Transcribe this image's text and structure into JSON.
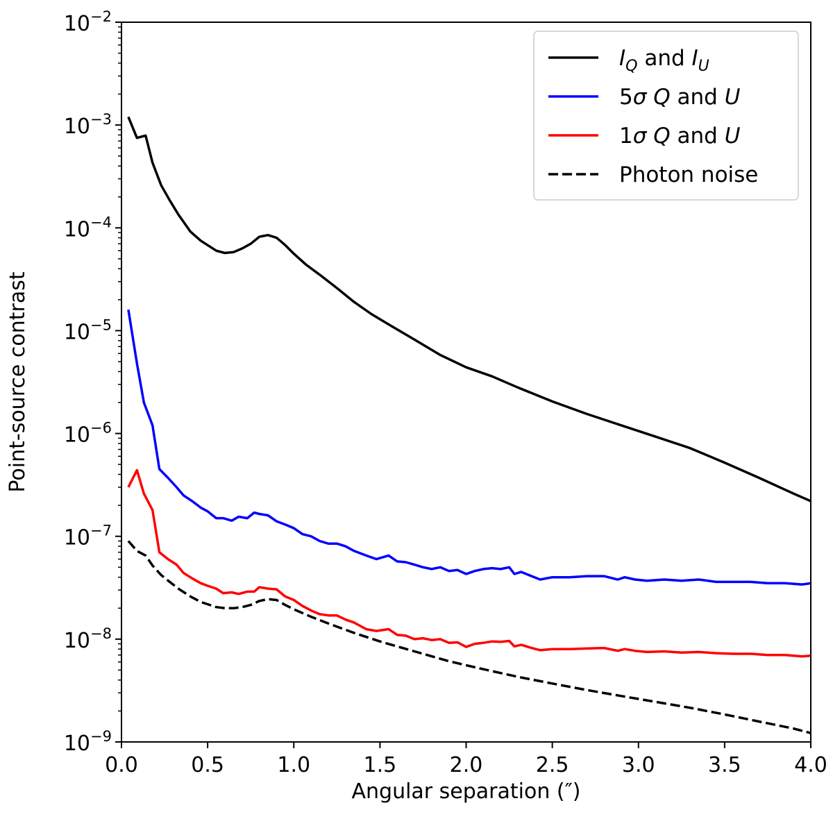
{
  "chart_data": {
    "type": "line",
    "xlabel": "Angular separation (″)",
    "ylabel": "Point-source contrast",
    "xlim": [
      0.0,
      4.0
    ],
    "ylim": [
      1e-09,
      0.01
    ],
    "yscale": "log",
    "grid": false,
    "legend_position": "top-right",
    "x_ticks": [
      "0.0",
      "0.5",
      "1.0",
      "1.5",
      "2.0",
      "2.5",
      "3.0",
      "3.5",
      "4.0"
    ],
    "y_ticks": [
      {
        "base": "10",
        "exp": "−9"
      },
      {
        "base": "10",
        "exp": "−8"
      },
      {
        "base": "10",
        "exp": "−7"
      },
      {
        "base": "10",
        "exp": "−6"
      },
      {
        "base": "10",
        "exp": "−5"
      },
      {
        "base": "10",
        "exp": "−4"
      },
      {
        "base": "10",
        "exp": "−3"
      },
      {
        "base": "10",
        "exp": "−2"
      }
    ],
    "series": [
      {
        "legend": {
          "parts": [
            [
              "I",
              "italic"
            ],
            [
              "Q",
              "sub-italic"
            ],
            [
              " and ",
              "normal"
            ],
            [
              "I",
              "italic"
            ],
            [
              "U",
              "sub-italic"
            ]
          ]
        },
        "color": "#000000",
        "dash": "solid",
        "x": [
          0.04,
          0.09,
          0.14,
          0.18,
          0.23,
          0.28,
          0.33,
          0.4,
          0.46,
          0.55,
          0.6,
          0.65,
          0.7,
          0.75,
          0.8,
          0.85,
          0.9,
          0.95,
          1.0,
          1.07,
          1.15,
          1.25,
          1.35,
          1.45,
          1.55,
          1.7,
          1.85,
          2.0,
          2.15,
          2.3,
          2.5,
          2.7,
          2.9,
          3.1,
          3.3,
          3.5,
          3.7,
          3.9,
          4.0
        ],
        "y": [
          0.0012,
          0.00075,
          0.00079,
          0.00043,
          0.00026,
          0.000185,
          0.000135,
          9.2e-05,
          7.5e-05,
          6e-05,
          5.7e-05,
          5.8e-05,
          6.3e-05,
          7e-05,
          8.2e-05,
          8.5e-05,
          8e-05,
          6.8e-05,
          5.6e-05,
          4.4e-05,
          3.5e-05,
          2.6e-05,
          1.9e-05,
          1.45e-05,
          1.15e-05,
          8.2e-06,
          5.8e-06,
          4.4e-06,
          3.6e-06,
          2.8e-06,
          2.05e-06,
          1.55e-06,
          1.2e-06,
          9.3e-07,
          7.2e-07,
          5.2e-07,
          3.7e-07,
          2.6e-07,
          2.2e-07
        ]
      },
      {
        "legend": {
          "parts": [
            [
              "5",
              "normal"
            ],
            [
              "σ",
              "italic"
            ],
            [
              " ",
              "normal"
            ],
            [
              "Q",
              "italic"
            ],
            [
              " and ",
              "normal"
            ],
            [
              "U",
              "italic"
            ]
          ]
        },
        "color": "#0000ff",
        "dash": "solid",
        "x": [
          0.04,
          0.09,
          0.13,
          0.18,
          0.22,
          0.27,
          0.32,
          0.36,
          0.41,
          0.46,
          0.5,
          0.55,
          0.59,
          0.64,
          0.68,
          0.73,
          0.77,
          0.8,
          0.85,
          0.9,
          0.95,
          1.0,
          1.05,
          1.1,
          1.15,
          1.2,
          1.25,
          1.3,
          1.35,
          1.42,
          1.48,
          1.55,
          1.6,
          1.65,
          1.7,
          1.75,
          1.8,
          1.85,
          1.9,
          1.95,
          2.0,
          2.05,
          2.1,
          2.15,
          2.2,
          2.25,
          2.28,
          2.32,
          2.38,
          2.43,
          2.5,
          2.6,
          2.7,
          2.8,
          2.88,
          2.92,
          2.98,
          3.05,
          3.15,
          3.25,
          3.35,
          3.45,
          3.55,
          3.65,
          3.75,
          3.85,
          3.95,
          4.0
        ],
        "y": [
          1.6e-05,
          4.8e-06,
          2e-06,
          1.2e-06,
          4.5e-07,
          3.7e-07,
          3e-07,
          2.5e-07,
          2.2e-07,
          1.9e-07,
          1.75e-07,
          1.5e-07,
          1.5e-07,
          1.42e-07,
          1.55e-07,
          1.5e-07,
          1.7e-07,
          1.65e-07,
          1.6e-07,
          1.4e-07,
          1.3e-07,
          1.2e-07,
          1.05e-07,
          1e-07,
          9e-08,
          8.5e-08,
          8.5e-08,
          8e-08,
          7.2e-08,
          6.5e-08,
          6e-08,
          6.5e-08,
          5.7e-08,
          5.6e-08,
          5.3e-08,
          5e-08,
          4.8e-08,
          5e-08,
          4.6e-08,
          4.7e-08,
          4.3e-08,
          4.6e-08,
          4.8e-08,
          4.9e-08,
          4.8e-08,
          5e-08,
          4.3e-08,
          4.5e-08,
          4.1e-08,
          3.8e-08,
          4e-08,
          4e-08,
          4.1e-08,
          4.1e-08,
          3.8e-08,
          4e-08,
          3.8e-08,
          3.7e-08,
          3.8e-08,
          3.7e-08,
          3.8e-08,
          3.6e-08,
          3.6e-08,
          3.6e-08,
          3.5e-08,
          3.5e-08,
          3.4e-08,
          3.5e-08
        ]
      },
      {
        "legend": {
          "parts": [
            [
              "1",
              "normal"
            ],
            [
              "σ",
              "italic"
            ],
            [
              " ",
              "normal"
            ],
            [
              "Q",
              "italic"
            ],
            [
              " and ",
              "normal"
            ],
            [
              "U",
              "italic"
            ]
          ]
        },
        "color": "#ff0000",
        "dash": "solid",
        "x": [
          0.04,
          0.09,
          0.13,
          0.18,
          0.22,
          0.27,
          0.32,
          0.36,
          0.41,
          0.46,
          0.5,
          0.55,
          0.59,
          0.64,
          0.68,
          0.73,
          0.77,
          0.8,
          0.85,
          0.9,
          0.95,
          1.0,
          1.05,
          1.1,
          1.15,
          1.2,
          1.25,
          1.3,
          1.35,
          1.42,
          1.48,
          1.55,
          1.6,
          1.65,
          1.7,
          1.75,
          1.8,
          1.85,
          1.9,
          1.95,
          2.0,
          2.05,
          2.1,
          2.15,
          2.2,
          2.25,
          2.28,
          2.32,
          2.38,
          2.43,
          2.5,
          2.6,
          2.7,
          2.8,
          2.88,
          2.92,
          2.98,
          3.05,
          3.15,
          3.25,
          3.35,
          3.45,
          3.55,
          3.65,
          3.75,
          3.85,
          3.95,
          4.0
        ],
        "y": [
          3e-07,
          4.4e-07,
          2.6e-07,
          1.8e-07,
          7e-08,
          6e-08,
          5.3e-08,
          4.4e-08,
          3.9e-08,
          3.5e-08,
          3.3e-08,
          3.1e-08,
          2.8e-08,
          2.85e-08,
          2.75e-08,
          2.9e-08,
          2.9e-08,
          3.2e-08,
          3.1e-08,
          3.05e-08,
          2.6e-08,
          2.4e-08,
          2.1e-08,
          1.9e-08,
          1.75e-08,
          1.7e-08,
          1.7e-08,
          1.55e-08,
          1.45e-08,
          1.25e-08,
          1.2e-08,
          1.25e-08,
          1.1e-08,
          1.08e-08,
          1e-08,
          1.02e-08,
          9.8e-09,
          1e-08,
          9.2e-09,
          9.3e-09,
          8.4e-09,
          9e-09,
          9.2e-09,
          9.5e-09,
          9.4e-09,
          9.6e-09,
          8.5e-09,
          8.8e-09,
          8.2e-09,
          7.8e-09,
          8e-09,
          8e-09,
          8.1e-09,
          8.2e-09,
          7.7e-09,
          8e-09,
          7.7e-09,
          7.5e-09,
          7.6e-09,
          7.4e-09,
          7.5e-09,
          7.3e-09,
          7.2e-09,
          7.2e-09,
          7e-09,
          7e-09,
          6.8e-09,
          6.9e-09
        ]
      },
      {
        "legend": {
          "parts": [
            [
              "Photon noise",
              "normal"
            ]
          ]
        },
        "color": "#000000",
        "dash": "dashed",
        "x": [
          0.04,
          0.09,
          0.14,
          0.18,
          0.23,
          0.28,
          0.33,
          0.4,
          0.46,
          0.55,
          0.6,
          0.65,
          0.7,
          0.75,
          0.8,
          0.85,
          0.9,
          0.95,
          1.0,
          1.1,
          1.2,
          1.35,
          1.5,
          1.7,
          1.9,
          2.1,
          2.3,
          2.5,
          2.7,
          2.9,
          3.1,
          3.3,
          3.5,
          3.7,
          3.9,
          4.0
        ],
        "y": [
          9e-08,
          7.2e-08,
          6.5e-08,
          5.2e-08,
          4.2e-08,
          3.6e-08,
          3.1e-08,
          2.6e-08,
          2.3e-08,
          2.05e-08,
          2e-08,
          2e-08,
          2.05e-08,
          2.15e-08,
          2.35e-08,
          2.45e-08,
          2.4e-08,
          2.15e-08,
          1.95e-08,
          1.65e-08,
          1.42e-08,
          1.15e-08,
          9.5e-09,
          7.6e-09,
          6.1e-09,
          5.1e-09,
          4.3e-09,
          3.7e-09,
          3.2e-09,
          2.8e-09,
          2.45e-09,
          2.15e-09,
          1.85e-09,
          1.58e-09,
          1.35e-09,
          1.22e-09
        ]
      }
    ]
  }
}
